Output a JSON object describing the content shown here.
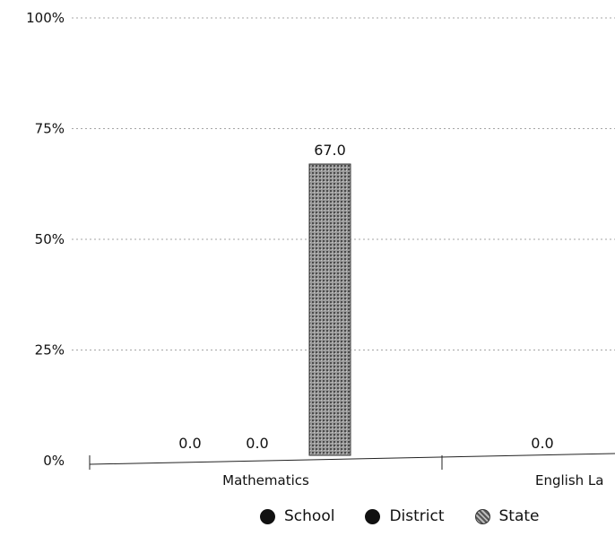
{
  "chart_data": {
    "type": "bar",
    "categories": [
      "Mathematics",
      "English La"
    ],
    "series": [
      {
        "name": "School",
        "values": [
          0.0,
          0.0
        ],
        "labels": [
          "0.0",
          "0.0"
        ]
      },
      {
        "name": "District",
        "values": [
          0.0,
          null
        ],
        "labels": [
          "0.0",
          ""
        ]
      },
      {
        "name": "State",
        "values": [
          67.0,
          null
        ],
        "labels": [
          "67.0",
          ""
        ]
      }
    ],
    "ylim": [
      0,
      100
    ],
    "y_ticks": [
      "0%",
      "25%",
      "50%",
      "75%",
      "100%"
    ],
    "grid": true,
    "legend_placement": "bottom",
    "colors": {
      "School": "#111111",
      "District": "#111111",
      "State": "#8a8a8a"
    }
  },
  "legend": {
    "items": [
      "School",
      "District",
      "State"
    ]
  }
}
